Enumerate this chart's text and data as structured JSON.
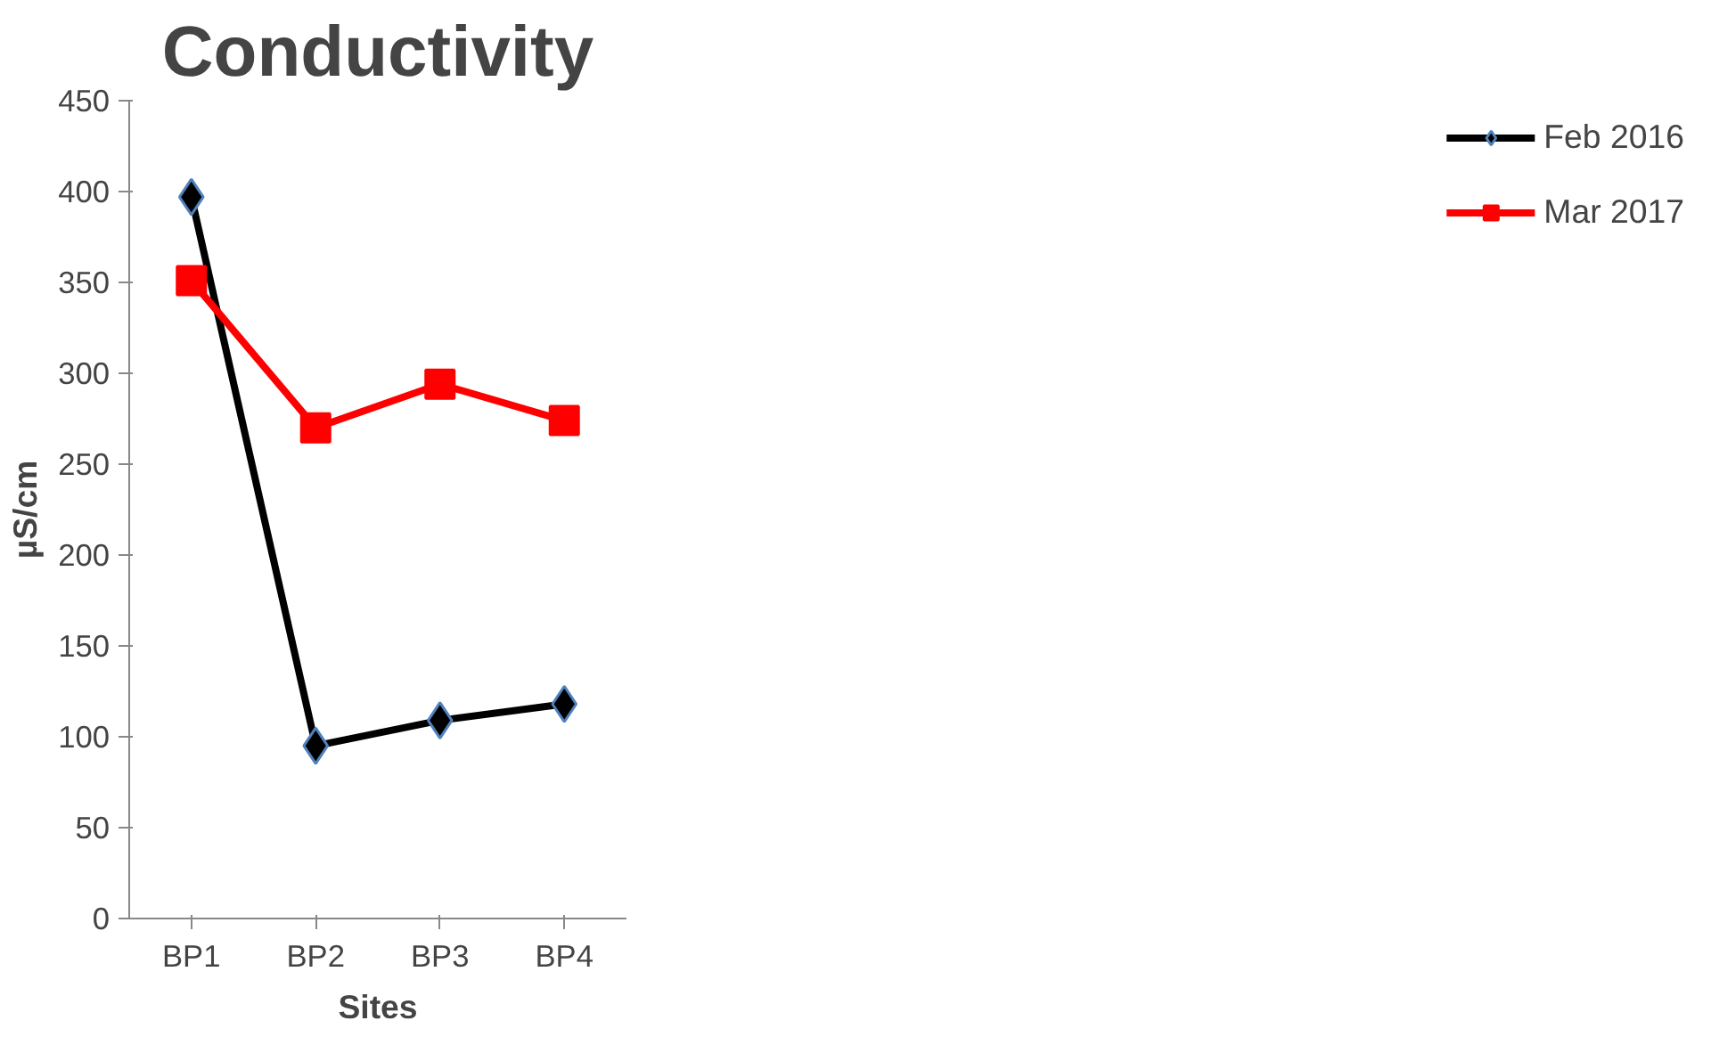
{
  "chart_data": {
    "type": "line",
    "title": "Conductivity",
    "xlabel": "Sites",
    "ylabel": "µS/cm",
    "categories": [
      "BP1",
      "BP2",
      "BP3",
      "BP4"
    ],
    "series": [
      {
        "name": "Feb 2016",
        "color": "#000000",
        "marker": "diamond",
        "values": [
          397,
          95,
          109,
          118
        ]
      },
      {
        "name": "Mar 2017",
        "color": "#ff0000",
        "marker": "square",
        "values": [
          351,
          270,
          294,
          274
        ]
      }
    ],
    "ylim": [
      0,
      450
    ],
    "yticks": [
      0,
      50,
      100,
      150,
      200,
      250,
      300,
      350,
      400,
      450
    ],
    "grid": false,
    "legend": "right"
  }
}
